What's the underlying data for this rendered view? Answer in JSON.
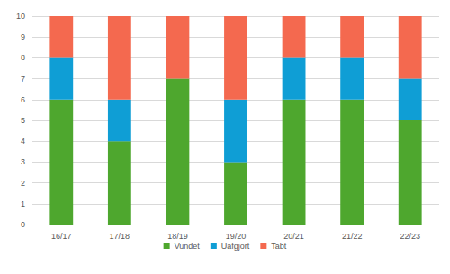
{
  "chart_data": {
    "type": "bar",
    "stacked": true,
    "grid": true,
    "legend": "bottom",
    "categories": [
      "16/17",
      "17/18",
      "18/19",
      "19/20",
      "20/21",
      "21/22",
      "22/23"
    ],
    "series": [
      {
        "name": "Vundet",
        "color": "#4ea72e",
        "values": [
          6,
          4,
          7,
          3,
          6,
          6,
          5
        ]
      },
      {
        "name": "Uafgjort",
        "color": "#0f9ed5",
        "values": [
          2,
          2,
          0,
          3,
          2,
          2,
          2
        ]
      },
      {
        "name": "Tabt",
        "color": "#f4694f",
        "values": [
          2,
          4,
          3,
          4,
          2,
          2,
          3
        ]
      }
    ],
    "ylim": [
      0,
      10
    ],
    "yticks": [
      0,
      1,
      2,
      3,
      4,
      5,
      6,
      7,
      8,
      9,
      10
    ]
  }
}
